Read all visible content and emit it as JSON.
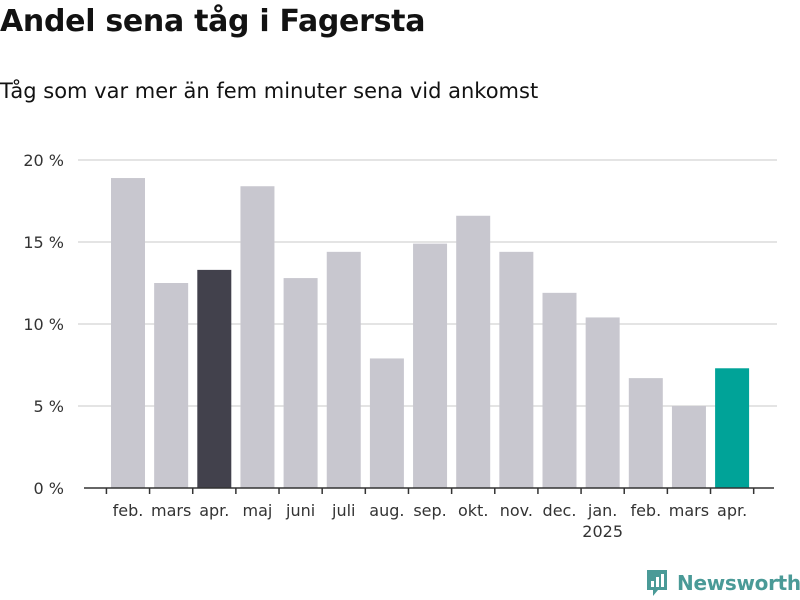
{
  "title": "Andel sena tåg i Fagersta",
  "subtitle": "Tåg som var mer än fem minuter sena vid ankomst",
  "brand": "Newsworthy",
  "colors": {
    "bar_default": "#c8c7cf",
    "bar_highlight_previous": "#42414c",
    "bar_highlight_current": "#00a398",
    "grid": "#dcdcdc",
    "axis": "#333333",
    "brand": "#4a9a97"
  },
  "chart_data": {
    "type": "bar",
    "title": "Andel sena tåg i Fagersta",
    "subtitle": "Tåg som var mer än fem minuter sena vid ankomst",
    "categories": [
      "feb.",
      "mars",
      "apr.",
      "maj",
      "juni",
      "juli",
      "aug.",
      "sep.",
      "okt.",
      "nov.",
      "dec.",
      "jan.",
      "feb.",
      "mars",
      "apr."
    ],
    "year_labels": [
      {
        "index": 11,
        "label": "2025"
      }
    ],
    "values": [
      18.9,
      12.5,
      13.3,
      18.4,
      12.8,
      14.4,
      7.9,
      14.9,
      16.6,
      14.4,
      11.9,
      10.4,
      6.7,
      5.0,
      7.3
    ],
    "highlight": {
      "2": "bar_highlight_previous",
      "14": "bar_highlight_current"
    },
    "ylim": [
      0,
      20
    ],
    "yticks": [
      0,
      5,
      10,
      15,
      20
    ],
    "ytick_labels": [
      "0 %",
      "5 %",
      "10 %",
      "15 %",
      "20 %"
    ],
    "grid": true,
    "legend": "none"
  }
}
